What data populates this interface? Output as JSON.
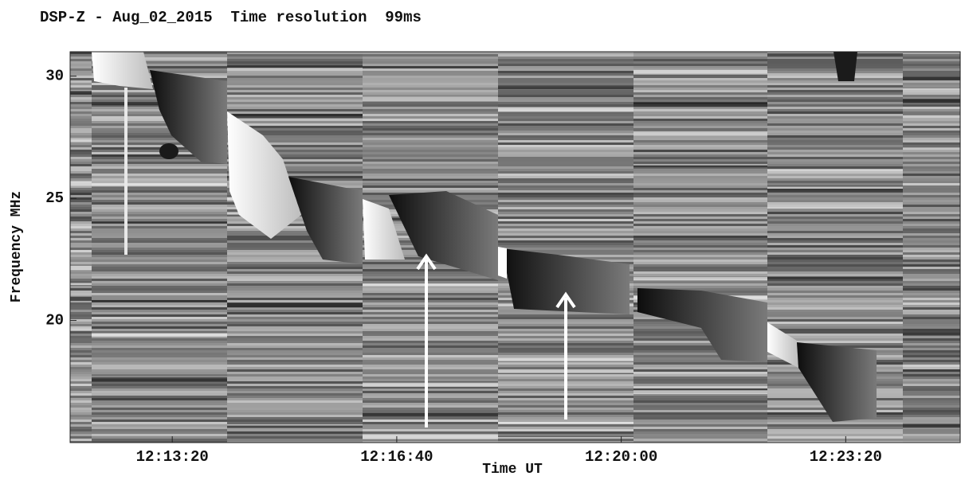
{
  "chart_data": {
    "type": "spectrogram",
    "title": "DSP-Z - Aug_02_2015  Time resolution  99ms",
    "x_label": "Time UT",
    "y_label": "Frequency MHz",
    "xlim": [
      "12:11:49",
      "12:25:02"
    ],
    "xticks": [
      "12:13:20",
      "12:16:40",
      "12:20:00",
      "12:23:20"
    ],
    "ylim": [
      15,
      31
    ],
    "yticks": [
      20,
      25,
      30
    ],
    "colormap": "gray"
  }
}
